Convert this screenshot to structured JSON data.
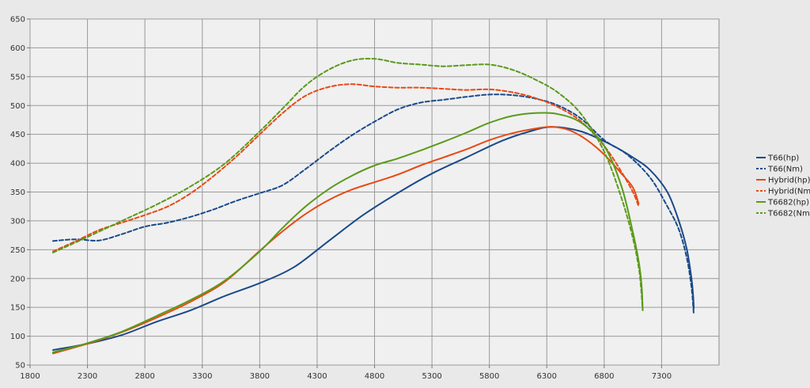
{
  "chart_data": {
    "type": "line",
    "title": "",
    "xlabel": "",
    "ylabel": "",
    "xlim": [
      1800,
      7800
    ],
    "ylim": [
      50,
      650
    ],
    "x_ticks": [
      "1800",
      "2300",
      "2800",
      "3300",
      "3800",
      "4300",
      "4800",
      "5300",
      "5800",
      "6300",
      "6800",
      "7300"
    ],
    "y_ticks": [
      "50",
      "100",
      "150",
      "200",
      "250",
      "300",
      "350",
      "400",
      "450",
      "500",
      "550",
      "600",
      "650"
    ],
    "grid": true,
    "legend_position": "right",
    "series": [
      {
        "name": "T66(hp)",
        "color": "#1a4a8a",
        "dash": "solid",
        "points": [
          [
            2000,
            76
          ],
          [
            2300,
            87
          ],
          [
            2600,
            102
          ],
          [
            2900,
            125
          ],
          [
            3200,
            145
          ],
          [
            3500,
            170
          ],
          [
            3800,
            192
          ],
          [
            4100,
            220
          ],
          [
            4400,
            265
          ],
          [
            4700,
            310
          ],
          [
            5000,
            348
          ],
          [
            5300,
            382
          ],
          [
            5600,
            410
          ],
          [
            5900,
            438
          ],
          [
            6150,
            455
          ],
          [
            6350,
            463
          ],
          [
            6600,
            455
          ],
          [
            6850,
            433
          ],
          [
            7050,
            410
          ],
          [
            7200,
            388
          ],
          [
            7350,
            350
          ],
          [
            7450,
            300
          ],
          [
            7520,
            250
          ],
          [
            7560,
            200
          ],
          [
            7575,
            170
          ],
          [
            7580,
            148
          ]
        ]
      },
      {
        "name": "T66(Nm)",
        "color": "#1a4a8a",
        "dash": "dashed",
        "points": [
          [
            2000,
            265
          ],
          [
            2200,
            268
          ],
          [
            2400,
            266
          ],
          [
            2600,
            277
          ],
          [
            2800,
            290
          ],
          [
            3000,
            297
          ],
          [
            3200,
            307
          ],
          [
            3400,
            320
          ],
          [
            3600,
            335
          ],
          [
            3800,
            348
          ],
          [
            4000,
            362
          ],
          [
            4200,
            390
          ],
          [
            4400,
            420
          ],
          [
            4600,
            448
          ],
          [
            4800,
            472
          ],
          [
            5000,
            493
          ],
          [
            5200,
            505
          ],
          [
            5400,
            510
          ],
          [
            5600,
            515
          ],
          [
            5800,
            519
          ],
          [
            6000,
            518
          ],
          [
            6200,
            512
          ],
          [
            6400,
            500
          ],
          [
            6600,
            477
          ],
          [
            6800,
            440
          ],
          [
            7000,
            415
          ],
          [
            7200,
            375
          ],
          [
            7350,
            325
          ],
          [
            7450,
            285
          ],
          [
            7520,
            235
          ],
          [
            7560,
            185
          ],
          [
            7580,
            138
          ]
        ]
      },
      {
        "name": "Hybrid(hp)",
        "color": "#e84a14",
        "dash": "solid",
        "points": [
          [
            2000,
            70
          ],
          [
            2300,
            87
          ],
          [
            2600,
            107
          ],
          [
            2900,
            132
          ],
          [
            3200,
            160
          ],
          [
            3500,
            195
          ],
          [
            3800,
            248
          ],
          [
            4000,
            282
          ],
          [
            4200,
            312
          ],
          [
            4400,
            336
          ],
          [
            4600,
            354
          ],
          [
            4800,
            367
          ],
          [
            5000,
            380
          ],
          [
            5200,
            396
          ],
          [
            5400,
            410
          ],
          [
            5600,
            424
          ],
          [
            5800,
            440
          ],
          [
            6000,
            452
          ],
          [
            6200,
            460
          ],
          [
            6350,
            463
          ],
          [
            6500,
            457
          ],
          [
            6650,
            440
          ],
          [
            6800,
            415
          ],
          [
            6950,
            382
          ],
          [
            7050,
            358
          ],
          [
            7100,
            330
          ]
        ]
      },
      {
        "name": "Hybrid(Nm)",
        "color": "#e84a14",
        "dash": "dashed",
        "points": [
          [
            2000,
            247
          ],
          [
            2200,
            265
          ],
          [
            2400,
            284
          ],
          [
            2600,
            297
          ],
          [
            2800,
            310
          ],
          [
            3000,
            325
          ],
          [
            3200,
            348
          ],
          [
            3400,
            378
          ],
          [
            3600,
            412
          ],
          [
            3800,
            450
          ],
          [
            4000,
            487
          ],
          [
            4200,
            517
          ],
          [
            4400,
            532
          ],
          [
            4600,
            537
          ],
          [
            4800,
            533
          ],
          [
            5000,
            531
          ],
          [
            5200,
            531
          ],
          [
            5400,
            529
          ],
          [
            5600,
            527
          ],
          [
            5800,
            528
          ],
          [
            6000,
            523
          ],
          [
            6200,
            513
          ],
          [
            6400,
            497
          ],
          [
            6600,
            472
          ],
          [
            6800,
            430
          ],
          [
            6950,
            385
          ],
          [
            7050,
            350
          ],
          [
            7100,
            325
          ]
        ]
      },
      {
        "name": "T6682(hp)",
        "color": "#5a9a1a",
        "dash": "solid",
        "points": [
          [
            2000,
            72
          ],
          [
            2300,
            88
          ],
          [
            2600,
            108
          ],
          [
            2900,
            135
          ],
          [
            3200,
            163
          ],
          [
            3500,
            197
          ],
          [
            3800,
            247
          ],
          [
            4000,
            288
          ],
          [
            4200,
            325
          ],
          [
            4400,
            355
          ],
          [
            4600,
            378
          ],
          [
            4800,
            396
          ],
          [
            5000,
            408
          ],
          [
            5200,
            422
          ],
          [
            5400,
            437
          ],
          [
            5600,
            453
          ],
          [
            5800,
            470
          ],
          [
            6000,
            482
          ],
          [
            6200,
            487
          ],
          [
            6400,
            485
          ],
          [
            6600,
            470
          ],
          [
            6800,
            430
          ],
          [
            6950,
            360
          ],
          [
            7050,
            280
          ],
          [
            7100,
            230
          ],
          [
            7120,
            200
          ],
          [
            7130,
            175
          ],
          [
            7135,
            145
          ]
        ]
      },
      {
        "name": "T6682(Nm)",
        "color": "#5a9a1a",
        "dash": "dashed",
        "points": [
          [
            2000,
            245
          ],
          [
            2300,
            272
          ],
          [
            2600,
            300
          ],
          [
            2900,
            328
          ],
          [
            3200,
            360
          ],
          [
            3500,
            400
          ],
          [
            3800,
            455
          ],
          [
            4000,
            495
          ],
          [
            4200,
            535
          ],
          [
            4400,
            562
          ],
          [
            4600,
            578
          ],
          [
            4800,
            581
          ],
          [
            5000,
            574
          ],
          [
            5200,
            571
          ],
          [
            5400,
            568
          ],
          [
            5600,
            570
          ],
          [
            5800,
            571
          ],
          [
            6000,
            562
          ],
          [
            6200,
            545
          ],
          [
            6400,
            522
          ],
          [
            6600,
            485
          ],
          [
            6800,
            420
          ],
          [
            6950,
            340
          ],
          [
            7050,
            270
          ],
          [
            7100,
            220
          ],
          [
            7120,
            185
          ],
          [
            7130,
            160
          ],
          [
            7135,
            145
          ]
        ]
      }
    ]
  }
}
